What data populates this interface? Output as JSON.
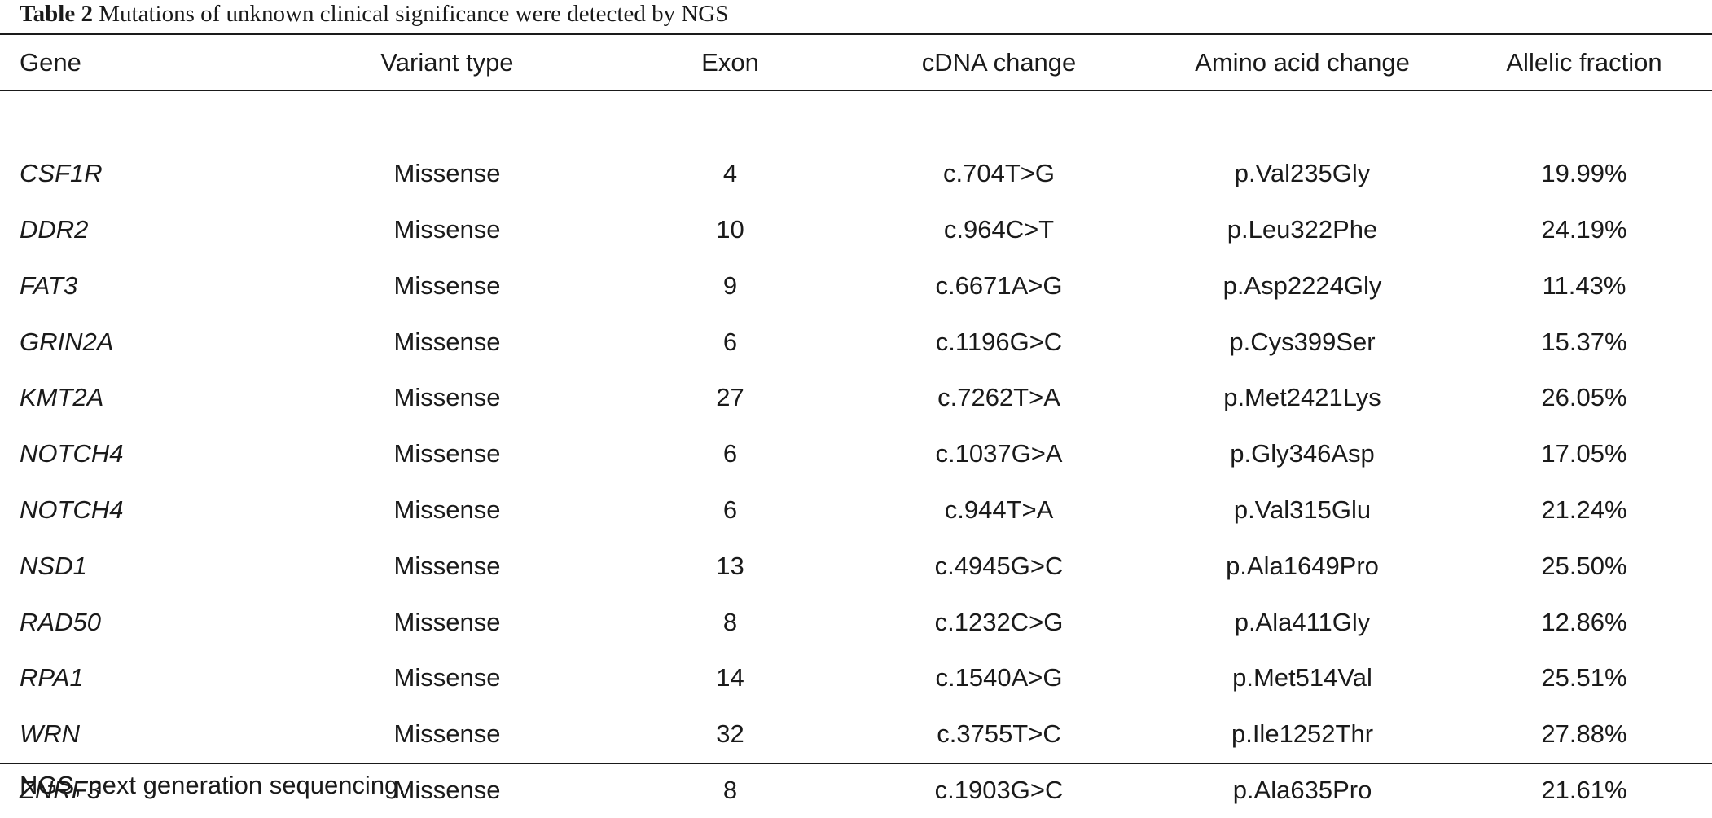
{
  "caption": {
    "label": "Table 2",
    "text": "Mutations of unknown clinical significance were detected by NGS"
  },
  "table": {
    "headers": [
      "Gene",
      "Variant type",
      "Exon",
      "cDNA change",
      "Amino acid change",
      "Allelic fraction"
    ],
    "rows": [
      [
        "CSF1R",
        "Missense",
        "4",
        "c.704T>G",
        "p.Val235Gly",
        "19.99%"
      ],
      [
        "DDR2",
        "Missense",
        "10",
        "c.964C>T",
        "p.Leu322Phe",
        "24.19%"
      ],
      [
        "FAT3",
        "Missense",
        "9",
        "c.6671A>G",
        "p.Asp2224Gly",
        "11.43%"
      ],
      [
        "GRIN2A",
        "Missense",
        "6",
        "c.1196G>C",
        "p.Cys399Ser",
        "15.37%"
      ],
      [
        "KMT2A",
        "Missense",
        "27",
        "c.7262T>A",
        "p.Met2421Lys",
        "26.05%"
      ],
      [
        "NOTCH4",
        "Missense",
        "6",
        "c.1037G>A",
        "p.Gly346Asp",
        "17.05%"
      ],
      [
        "NOTCH4",
        "Missense",
        "6",
        "c.944T>A",
        "p.Val315Glu",
        "21.24%"
      ],
      [
        "NSD1",
        "Missense",
        "13",
        "c.4945G>C",
        "p.Ala1649Pro",
        "25.50%"
      ],
      [
        "RAD50",
        "Missense",
        "8",
        "c.1232C>G",
        "p.Ala411Gly",
        "12.86%"
      ],
      [
        "RPA1",
        "Missense",
        "14",
        "c.1540A>G",
        "p.Met514Val",
        "25.51%"
      ],
      [
        "WRN",
        "Missense",
        "32",
        "c.3755T>C",
        "p.Ile1252Thr",
        "27.88%"
      ],
      [
        "ZNRF3",
        "Missense",
        "8",
        "c.1903G>C",
        "p.Ala635Pro",
        "21.61%"
      ]
    ]
  },
  "footnote": "NGS, next generation sequencing."
}
